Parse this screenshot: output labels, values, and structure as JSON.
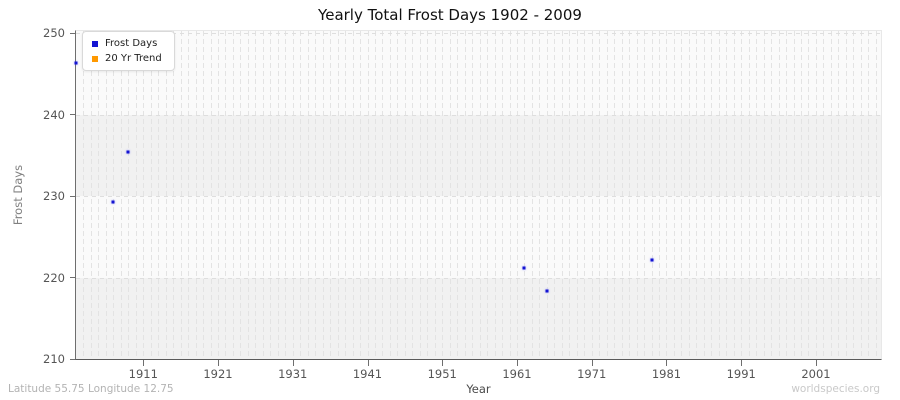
{
  "footer": {
    "coordinates": "Latitude 55.75 Longitude 12.75",
    "watermark": "worldspecies.org"
  },
  "chart_data": {
    "type": "scatter",
    "title": "Yearly Total Frost Days 1902 - 2009",
    "xlabel": "Year",
    "ylabel": "Frost Days",
    "xlim": [
      1902,
      2009.7
    ],
    "ylim": [
      210,
      250.3
    ],
    "xticks": [
      1911,
      1921,
      1931,
      1941,
      1951,
      1961,
      1971,
      1981,
      1991,
      2001
    ],
    "yticks": [
      210,
      220,
      230,
      240,
      250
    ],
    "x_minor_gridline_step_years": 1,
    "y_gridline_values": [
      220,
      230,
      240,
      250
    ],
    "shaded_bands": [
      [
        210,
        220
      ],
      [
        230,
        240
      ]
    ],
    "grid": "dashed",
    "legend_position": "top-left",
    "series": [
      {
        "name": "Frost Days",
        "marker": "square",
        "color": "#1414d2",
        "points": [
          [
            1902,
            246.4
          ],
          [
            1907,
            229.3
          ],
          [
            1909,
            235.4
          ],
          [
            1962,
            221.2
          ],
          [
            1965,
            218.3
          ],
          [
            1979,
            222.2
          ]
        ]
      },
      {
        "name": "20 Yr Trend",
        "marker": "square",
        "color": "#ff9900",
        "points": []
      }
    ]
  }
}
